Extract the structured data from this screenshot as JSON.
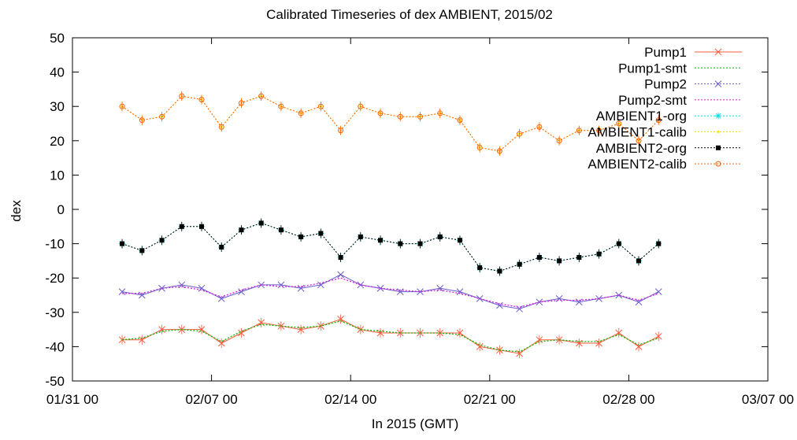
{
  "chart_data": {
    "type": "line",
    "title": "Calibrated Timeseries of dex AMBIENT, 2015/02",
    "xlabel": "In 2015 (GMT)",
    "ylabel": "dex",
    "ylim": [
      -50,
      50
    ],
    "yticks": [
      -50,
      -40,
      -30,
      -20,
      -10,
      0,
      10,
      20,
      30,
      40,
      50
    ],
    "xlim": [
      "2015-01-31",
      "2015-03-07"
    ],
    "xticks": [
      "2015-01-31",
      "2015-02-07",
      "2015-02-14",
      "2015-02-21",
      "2015-02-28",
      "2015-03-07"
    ],
    "xtick_labels": [
      "01/31 00",
      "02/07 00",
      "02/14 00",
      "02/21 00",
      "02/28 00",
      "03/07 00"
    ],
    "grid": false,
    "legend_position": "top-right",
    "series": [
      {
        "name": "Pump1",
        "color": "#ff5a3c",
        "marker": "x",
        "errorbars": true,
        "x": [
          "2015-02-02",
          "2015-02-03",
          "2015-02-04",
          "2015-02-05",
          "2015-02-06",
          "2015-02-07",
          "2015-02-08",
          "2015-02-09",
          "2015-02-10",
          "2015-02-11",
          "2015-02-12",
          "2015-02-13",
          "2015-02-14",
          "2015-02-15",
          "2015-02-16",
          "2015-02-17",
          "2015-02-18",
          "2015-02-19",
          "2015-02-20",
          "2015-02-21",
          "2015-02-22",
          "2015-02-23",
          "2015-02-24",
          "2015-02-25",
          "2015-02-26",
          "2015-02-27",
          "2015-02-28",
          "2015-03-01"
        ],
        "values": [
          -38,
          -38,
          -35,
          -35,
          -35,
          -39,
          -36,
          -33,
          -34,
          -35,
          -34,
          -32,
          -35,
          -36,
          -36,
          -36,
          -36,
          -36,
          -40,
          -41,
          -42,
          -38,
          -38,
          -39,
          -39,
          -36,
          -40,
          -37
        ]
      },
      {
        "name": "Pump1-smt",
        "color": "#00c000",
        "marker": "line",
        "errorbars": false,
        "x": [
          "2015-02-02",
          "2015-02-03",
          "2015-02-04",
          "2015-02-05",
          "2015-02-06",
          "2015-02-07",
          "2015-02-08",
          "2015-02-09",
          "2015-02-10",
          "2015-02-11",
          "2015-02-12",
          "2015-02-13",
          "2015-02-14",
          "2015-02-15",
          "2015-02-16",
          "2015-02-17",
          "2015-02-18",
          "2015-02-19",
          "2015-02-20",
          "2015-02-21",
          "2015-02-22",
          "2015-02-23",
          "2015-02-24",
          "2015-02-25",
          "2015-02-26",
          "2015-02-27",
          "2015-02-28",
          "2015-03-01"
        ],
        "values": [
          -38,
          -37.5,
          -35.5,
          -35,
          -35.5,
          -38.5,
          -35.5,
          -33.5,
          -34,
          -34.5,
          -34,
          -32.5,
          -35,
          -35.5,
          -36,
          -36,
          -36,
          -36.5,
          -39.5,
          -41,
          -41.5,
          -38.5,
          -38,
          -38.5,
          -38.5,
          -36.5,
          -39.5,
          -37.5
        ]
      },
      {
        "name": "Pump2",
        "color": "#6a5acd",
        "marker": "x",
        "errorbars": false,
        "x": [
          "2015-02-02",
          "2015-02-03",
          "2015-02-04",
          "2015-02-05",
          "2015-02-06",
          "2015-02-07",
          "2015-02-08",
          "2015-02-09",
          "2015-02-10",
          "2015-02-11",
          "2015-02-12",
          "2015-02-13",
          "2015-02-14",
          "2015-02-15",
          "2015-02-16",
          "2015-02-17",
          "2015-02-18",
          "2015-02-19",
          "2015-02-20",
          "2015-02-21",
          "2015-02-22",
          "2015-02-23",
          "2015-02-24",
          "2015-02-25",
          "2015-02-26",
          "2015-02-27",
          "2015-02-28",
          "2015-03-01"
        ],
        "values": [
          -24,
          -25,
          -23,
          -22,
          -23,
          -26,
          -24,
          -22,
          -22,
          -23,
          -22,
          -19,
          -22,
          -23,
          -24,
          -24,
          -23,
          -24,
          -26,
          -28,
          -29,
          -27,
          -26,
          -27,
          -26,
          -25,
          -27,
          -24
        ]
      },
      {
        "name": "Pump2-smt",
        "color": "#d020e0",
        "marker": "line",
        "errorbars": false,
        "x": [
          "2015-02-02",
          "2015-02-03",
          "2015-02-04",
          "2015-02-05",
          "2015-02-06",
          "2015-02-07",
          "2015-02-08",
          "2015-02-09",
          "2015-02-10",
          "2015-02-11",
          "2015-02-12",
          "2015-02-13",
          "2015-02-14",
          "2015-02-15",
          "2015-02-16",
          "2015-02-17",
          "2015-02-18",
          "2015-02-19",
          "2015-02-20",
          "2015-02-21",
          "2015-02-22",
          "2015-02-23",
          "2015-02-24",
          "2015-02-25",
          "2015-02-26",
          "2015-02-27",
          "2015-02-28",
          "2015-03-01"
        ],
        "values": [
          -24.5,
          -24.5,
          -23,
          -22.5,
          -23.5,
          -25.5,
          -23.5,
          -22,
          -22.5,
          -22.5,
          -21.5,
          -20,
          -22,
          -23,
          -23.5,
          -24,
          -23.5,
          -24.5,
          -26,
          -27.5,
          -28.5,
          -27,
          -26.5,
          -26.5,
          -26,
          -25,
          -26.5,
          -24.5
        ]
      },
      {
        "name": "AMBIENT1-org",
        "color": "#00e0e0",
        "marker": "star",
        "errorbars": true,
        "x": [
          "2015-02-02",
          "2015-02-03",
          "2015-02-04",
          "2015-02-05",
          "2015-02-06",
          "2015-02-07",
          "2015-02-08",
          "2015-02-09",
          "2015-02-10",
          "2015-02-11",
          "2015-02-12",
          "2015-02-13",
          "2015-02-14",
          "2015-02-15",
          "2015-02-16",
          "2015-02-17",
          "2015-02-18",
          "2015-02-19",
          "2015-02-20",
          "2015-02-21",
          "2015-02-22",
          "2015-02-23",
          "2015-02-24",
          "2015-02-25",
          "2015-02-26",
          "2015-02-27",
          "2015-02-28",
          "2015-03-01"
        ],
        "values": [
          -10,
          -12,
          -9,
          -5,
          -5,
          -11,
          -6,
          -4,
          -6,
          -8,
          -7,
          -14,
          -8,
          -9,
          -10,
          -10,
          -8,
          -9,
          -17,
          -18,
          -16,
          -14,
          -15,
          -14,
          -13,
          -10,
          -15,
          -10
        ]
      },
      {
        "name": "AMBIENT1-calib",
        "color": "#ffe000",
        "marker": "dot",
        "errorbars": true,
        "x": [
          "2015-02-02",
          "2015-02-03",
          "2015-02-04",
          "2015-02-05",
          "2015-02-06",
          "2015-02-07",
          "2015-02-08",
          "2015-02-09",
          "2015-02-10",
          "2015-02-11",
          "2015-02-12",
          "2015-02-13",
          "2015-02-14",
          "2015-02-15",
          "2015-02-16",
          "2015-02-17",
          "2015-02-18",
          "2015-02-19",
          "2015-02-20",
          "2015-02-21",
          "2015-02-22",
          "2015-02-23",
          "2015-02-24",
          "2015-02-25",
          "2015-02-26",
          "2015-02-27",
          "2015-02-28",
          "2015-03-01"
        ],
        "values": [
          30,
          26,
          27,
          33,
          32,
          24,
          31,
          33,
          30,
          28,
          30,
          23,
          30,
          28,
          27,
          27,
          28,
          26,
          18,
          17,
          22,
          24,
          20,
          23,
          23,
          25,
          20,
          26
        ]
      },
      {
        "name": "AMBIENT2-org",
        "color": "#000000",
        "marker": "square",
        "errorbars": true,
        "x": [
          "2015-02-02",
          "2015-02-03",
          "2015-02-04",
          "2015-02-05",
          "2015-02-06",
          "2015-02-07",
          "2015-02-08",
          "2015-02-09",
          "2015-02-10",
          "2015-02-11",
          "2015-02-12",
          "2015-02-13",
          "2015-02-14",
          "2015-02-15",
          "2015-02-16",
          "2015-02-17",
          "2015-02-18",
          "2015-02-19",
          "2015-02-20",
          "2015-02-21",
          "2015-02-22",
          "2015-02-23",
          "2015-02-24",
          "2015-02-25",
          "2015-02-26",
          "2015-02-27",
          "2015-02-28",
          "2015-03-01"
        ],
        "values": [
          -10,
          -12,
          -9,
          -5,
          -5,
          -11,
          -6,
          -4,
          -6,
          -8,
          -7,
          -14,
          -8,
          -9,
          -10,
          -10,
          -8,
          -9,
          -17,
          -18,
          -16,
          -14,
          -15,
          -14,
          -13,
          -10,
          -15,
          -10
        ]
      },
      {
        "name": "AMBIENT2-calib",
        "color": "#ff6000",
        "marker": "circle",
        "errorbars": true,
        "x": [
          "2015-02-02",
          "2015-02-03",
          "2015-02-04",
          "2015-02-05",
          "2015-02-06",
          "2015-02-07",
          "2015-02-08",
          "2015-02-09",
          "2015-02-10",
          "2015-02-11",
          "2015-02-12",
          "2015-02-13",
          "2015-02-14",
          "2015-02-15",
          "2015-02-16",
          "2015-02-17",
          "2015-02-18",
          "2015-02-19",
          "2015-02-20",
          "2015-02-21",
          "2015-02-22",
          "2015-02-23",
          "2015-02-24",
          "2015-02-25",
          "2015-02-26",
          "2015-02-27",
          "2015-02-28",
          "2015-03-01"
        ],
        "values": [
          30,
          26,
          27,
          33,
          32,
          24,
          31,
          33,
          30,
          28,
          30,
          23,
          30,
          28,
          27,
          27,
          28,
          26,
          18,
          17,
          22,
          24,
          20,
          23,
          23,
          25,
          20,
          26
        ]
      }
    ]
  }
}
